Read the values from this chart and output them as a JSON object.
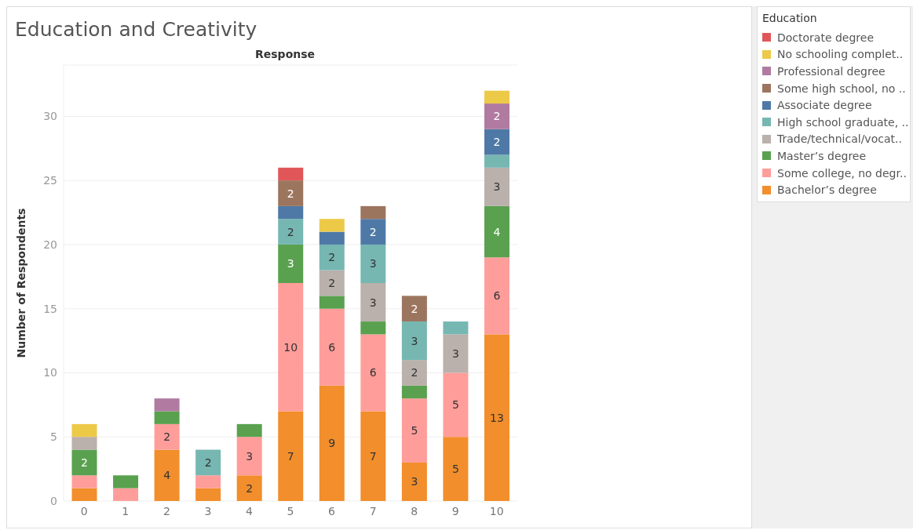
{
  "chart_data": {
    "type": "bar",
    "stacked": true,
    "title": "Education and Creativity",
    "xlabel": "Response",
    "ylabel": "Number of Respondents",
    "legend_title": "Education",
    "legend": "top right",
    "grid": "y",
    "categories": [
      "0",
      "1",
      "2",
      "3",
      "4",
      "5",
      "6",
      "7",
      "8",
      "9",
      "10"
    ],
    "ylim": [
      0,
      34
    ],
    "yticks": [
      0,
      5,
      10,
      15,
      20,
      25,
      30
    ],
    "series": [
      {
        "name": "Bachelor’s degree",
        "color": "#f28e2b",
        "values": [
          1,
          null,
          4,
          1,
          2,
          7,
          9,
          7,
          3,
          5,
          13
        ],
        "value_labels": [
          null,
          null,
          "4",
          null,
          "2",
          "7",
          "9",
          "7",
          "3",
          "5",
          "13"
        ]
      },
      {
        "name": "Some college, no degr..",
        "color": "#ff9d9a",
        "values": [
          1,
          1,
          2,
          1,
          3,
          10,
          6,
          6,
          5,
          5,
          6
        ],
        "value_labels": [
          null,
          null,
          "2",
          null,
          "3",
          "10",
          "6",
          "6",
          "5",
          "5",
          "6"
        ]
      },
      {
        "name": "Master’s degree",
        "color": "#59a14f",
        "values": [
          2,
          1,
          1,
          null,
          1,
          3,
          1,
          1,
          1,
          null,
          4
        ],
        "value_labels": [
          "2",
          null,
          null,
          null,
          null,
          "3",
          null,
          null,
          null,
          null,
          "4"
        ]
      },
      {
        "name": "Trade/technical/vocat..",
        "color": "#bab0ac",
        "values": [
          1,
          null,
          null,
          null,
          null,
          null,
          2,
          3,
          2,
          3,
          3
        ],
        "value_labels": [
          null,
          null,
          null,
          null,
          null,
          null,
          "2",
          "3",
          "2",
          "3",
          "3"
        ]
      },
      {
        "name": "High school graduate, ..",
        "color": "#76b7b2",
        "values": [
          null,
          null,
          null,
          2,
          null,
          2,
          2,
          3,
          3,
          1,
          1
        ],
        "value_labels": [
          null,
          null,
          null,
          "2",
          null,
          "2",
          "2",
          "3",
          "3",
          null,
          null
        ]
      },
      {
        "name": "Associate degree",
        "color": "#4e79a7",
        "values": [
          null,
          null,
          null,
          null,
          null,
          1,
          1,
          2,
          null,
          null,
          2
        ],
        "value_labels": [
          null,
          null,
          null,
          null,
          null,
          null,
          null,
          "2",
          null,
          null,
          "2"
        ]
      },
      {
        "name": "Some high school, no ..",
        "color": "#9c755f",
        "values": [
          null,
          null,
          null,
          null,
          null,
          2,
          null,
          1,
          2,
          null,
          null
        ],
        "value_labels": [
          null,
          null,
          null,
          null,
          null,
          "2",
          null,
          null,
          "2",
          null,
          null
        ]
      },
      {
        "name": "Professional degree",
        "color": "#b07aa1",
        "values": [
          null,
          null,
          1,
          null,
          null,
          null,
          null,
          null,
          null,
          null,
          2
        ],
        "value_labels": [
          null,
          null,
          null,
          null,
          null,
          null,
          null,
          null,
          null,
          null,
          "2"
        ]
      },
      {
        "name": "No schooling complet..",
        "color": "#edc948",
        "values": [
          1,
          null,
          null,
          null,
          null,
          null,
          1,
          null,
          null,
          null,
          1
        ],
        "value_labels": [
          null,
          null,
          null,
          null,
          null,
          null,
          null,
          null,
          null,
          null,
          null
        ]
      },
      {
        "name": "Doctorate degree",
        "color": "#e15759",
        "values": [
          null,
          null,
          null,
          null,
          null,
          1,
          null,
          null,
          null,
          null,
          null
        ],
        "value_labels": [
          null,
          null,
          null,
          null,
          null,
          null,
          null,
          null,
          null,
          null,
          null
        ]
      }
    ]
  }
}
